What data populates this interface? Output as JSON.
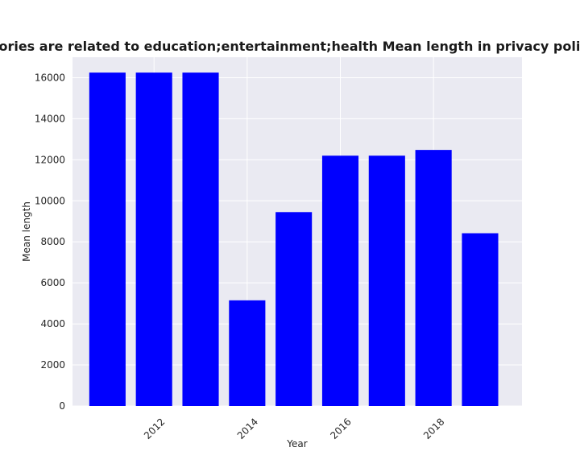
{
  "chart_data": {
    "type": "bar",
    "title": "When categories are related to education;entertainment;health Mean length in privacy policies by year",
    "xlabel": "Year",
    "ylabel": "Mean length",
    "x": [
      2011,
      2012,
      2013,
      2014,
      2015,
      2016,
      2017,
      2018,
      2019
    ],
    "values": [
      16250,
      16250,
      16250,
      5150,
      9450,
      12200,
      12200,
      12480,
      8420
    ],
    "x_ticks": [
      "2012",
      "2014",
      "2016",
      "2018"
    ],
    "y_ticks": [
      "0",
      "2000",
      "4000",
      "6000",
      "8000",
      "10000",
      "12000",
      "14000",
      "16000"
    ],
    "ylim": [
      0,
      17000
    ],
    "xlim": [
      2010.25,
      2019.9
    ],
    "bar_color": "#0000ff",
    "plot_background": "#eaeaf2",
    "grid_color": "#ffffff",
    "grid": true,
    "legend": "none"
  }
}
